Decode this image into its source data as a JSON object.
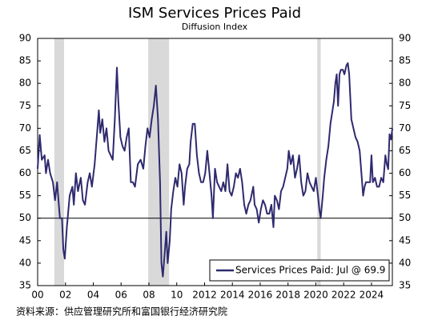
{
  "chart_data": {
    "type": "line",
    "title": "ISM Services Prices Paid",
    "subtitle": "Diffusion Index",
    "source": "资料来源：供应管理研究所和富国银行经济研究院",
    "x": [
      2000.0,
      2000.15,
      2000.3,
      2000.5,
      2000.6,
      2000.75,
      2000.9,
      2001.1,
      2001.25,
      2001.4,
      2001.6,
      2001.75,
      2001.85,
      2001.95,
      2002.1,
      2002.3,
      2002.5,
      2002.6,
      2002.75,
      2002.9,
      2003.1,
      2003.25,
      2003.4,
      2003.6,
      2003.75,
      2003.9,
      2004.1,
      2004.3,
      2004.4,
      2004.5,
      2004.65,
      2004.8,
      2004.95,
      2005.1,
      2005.25,
      2005.4,
      2005.55,
      2005.7,
      2005.8,
      2005.95,
      2006.1,
      2006.25,
      2006.4,
      2006.55,
      2006.7,
      2006.85,
      2007.0,
      2007.2,
      2007.4,
      2007.6,
      2007.75,
      2007.9,
      2008.05,
      2008.2,
      2008.35,
      2008.5,
      2008.65,
      2008.8,
      2008.9,
      2009.0,
      2009.15,
      2009.25,
      2009.35,
      2009.5,
      2009.6,
      2009.75,
      2009.9,
      2010.05,
      2010.2,
      2010.35,
      2010.5,
      2010.6,
      2010.75,
      2010.9,
      2011.0,
      2011.15,
      2011.3,
      2011.45,
      2011.6,
      2011.75,
      2011.9,
      2012.05,
      2012.2,
      2012.35,
      2012.5,
      2012.6,
      2012.75,
      2012.9,
      2013.05,
      2013.2,
      2013.35,
      2013.5,
      2013.65,
      2013.8,
      2013.95,
      2014.1,
      2014.25,
      2014.4,
      2014.55,
      2014.7,
      2014.85,
      2015.0,
      2015.15,
      2015.3,
      2015.5,
      2015.6,
      2015.75,
      2015.9,
      2016.05,
      2016.2,
      2016.35,
      2016.5,
      2016.65,
      2016.8,
      2016.95,
      2017.05,
      2017.2,
      2017.35,
      2017.5,
      2017.65,
      2017.8,
      2017.95,
      2018.05,
      2018.2,
      2018.35,
      2018.5,
      2018.65,
      2018.8,
      2018.95,
      2019.1,
      2019.25,
      2019.4,
      2019.55,
      2019.7,
      2019.85,
      2020.0,
      2020.15,
      2020.25,
      2020.35,
      2020.5,
      2020.6,
      2020.75,
      2020.9,
      2021.05,
      2021.2,
      2021.3,
      2021.4,
      2021.5,
      2021.6,
      2021.7,
      2021.8,
      2021.95,
      2022.05,
      2022.2,
      2022.3,
      2022.4,
      2022.55,
      2022.7,
      2022.85,
      2023.0,
      2023.15,
      2023.3,
      2023.4,
      2023.5,
      2023.6,
      2023.75,
      2023.9,
      2024.0,
      2024.1,
      2024.25,
      2024.4,
      2024.55,
      2024.7,
      2024.85,
      2025.0,
      2025.1,
      2025.2,
      2025.3,
      2025.4,
      2025.5
    ],
    "series": [
      {
        "name": "Services Prices Paid: Jul @ 69.9",
        "color": "#2e2a6e",
        "values": [
          61,
          68.5,
          63,
          64,
          60,
          63,
          60,
          58,
          54,
          58,
          50,
          50,
          43,
          41,
          48,
          55,
          57,
          53,
          60,
          56,
          59,
          54,
          53,
          58,
          60,
          57,
          62,
          70,
          74,
          69,
          72,
          67,
          70,
          65,
          64,
          63,
          72,
          83.5,
          76,
          68,
          66,
          65,
          68,
          70,
          58,
          58,
          57,
          62,
          63,
          61,
          66,
          70,
          68,
          72,
          75,
          79.5,
          72,
          58,
          40,
          37,
          43,
          47,
          40,
          45,
          52,
          56,
          59,
          57,
          62,
          60,
          53,
          57,
          61,
          62,
          67,
          71,
          71,
          64,
          60,
          58,
          58,
          60,
          65,
          60,
          55,
          50,
          61,
          58,
          57,
          56,
          58,
          56,
          62,
          56,
          55,
          57,
          60,
          59,
          61,
          58,
          53,
          51,
          53,
          54,
          57,
          53,
          52,
          49,
          52,
          54,
          53,
          51,
          51,
          53,
          48,
          55,
          54,
          52,
          56,
          57,
          59,
          61,
          65,
          62,
          64,
          59,
          61,
          64,
          58,
          55,
          56,
          60,
          58,
          57,
          56,
          59,
          55,
          52,
          50,
          55,
          59,
          63,
          66,
          71,
          74,
          76,
          80,
          82,
          75,
          82,
          83,
          83,
          82,
          84,
          84.5,
          82,
          72,
          70,
          68,
          67,
          65,
          59,
          55,
          57,
          58,
          58,
          58,
          64,
          58,
          59,
          57,
          57,
          59,
          58,
          64,
          62,
          60.9,
          68.7,
          67.5,
          69.9
        ]
      }
    ],
    "shaded": [
      [
        2001.2,
        2001.9
      ],
      [
        2007.95,
        2009.45
      ],
      [
        2020.1,
        2020.35
      ]
    ],
    "hline": 50,
    "xlim": [
      2000,
      2025.5
    ],
    "xticks": [
      {
        "value": 2000,
        "label": "00"
      },
      {
        "value": 2002,
        "label": "02"
      },
      {
        "value": 2004,
        "label": "04"
      },
      {
        "value": 2006,
        "label": "06"
      },
      {
        "value": 2008,
        "label": "08"
      },
      {
        "value": 2010,
        "label": "10"
      },
      2012,
      2014,
      2016,
      2018,
      2020,
      2022,
      2024
    ],
    "ylim": [
      35,
      90
    ],
    "yticks": [
      35,
      40,
      45,
      50,
      55,
      60,
      65,
      70,
      75,
      80,
      85,
      90
    ],
    "y2lim": [
      35,
      90
    ],
    "y2ticks": [
      35,
      40,
      45,
      50,
      55,
      60,
      65,
      70,
      75,
      80,
      85,
      90
    ],
    "legend": "bottom-right"
  }
}
